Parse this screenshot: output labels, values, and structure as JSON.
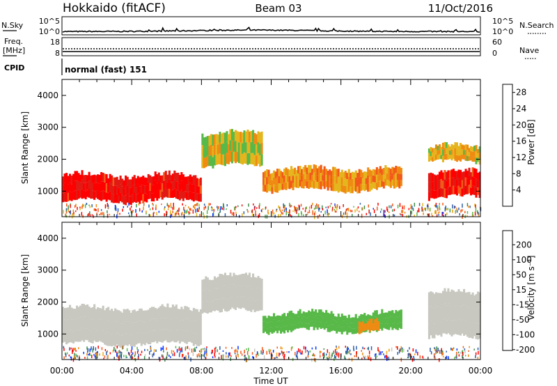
{
  "header": {
    "station": "Hokkaido (fitACF)",
    "beam": "Beam 03",
    "date": "11/Oct/2016"
  },
  "noise_panel": {
    "left_label": "N.Sky",
    "left_ticks": [
      "10^5",
      "10^0"
    ],
    "right_label": "N.Search",
    "right_ticks": [
      "10^5",
      "10^0"
    ]
  },
  "freq_panel": {
    "left_label_1": "Freq.",
    "left_label_2": "[MHz]",
    "left_ticks": [
      "18",
      "8"
    ],
    "right_label": "Nave",
    "right_ticks": [
      "60",
      "0"
    ]
  },
  "cpid_panel": {
    "label": "CPID",
    "mode": "normal (fast) 151"
  },
  "colors": {
    "power": [
      "#0033ff",
      "#2d5fa8",
      "#3f8d4e",
      "#58b848",
      "#e5b51e",
      "#ef8a12",
      "#f25a1a",
      "#e11a14",
      "#ff0000"
    ],
    "velocity": [
      "#ff0000",
      "#f25a1a",
      "#ef8a12",
      "#f2a81a",
      "#c8c8c0",
      "#58b848",
      "#3f8d4e",
      "#2d5fa8",
      "#0033ff"
    ]
  },
  "chart_data": [
    {
      "type": "heatmap",
      "name": "power",
      "ylabel": "Slant Range [km]",
      "xlabel": "",
      "xlim": [
        "00:00",
        "24:00"
      ],
      "ylim": [
        200,
        4500
      ],
      "y_ticks": [
        "1000",
        "2000",
        "3000",
        "4000"
      ],
      "colorbar": {
        "label": "Power [dB]",
        "ticks": [
          "4",
          "8",
          "12",
          "16",
          "20",
          "24",
          "28"
        ],
        "range": [
          0,
          30
        ]
      },
      "echo_regions": [
        {
          "t_start": 0.0,
          "t_end": 8.0,
          "r_low": 700,
          "r_high": 1500,
          "power_db": 27
        },
        {
          "t_start": 8.0,
          "t_end": 11.5,
          "r_low": 1800,
          "r_high": 2800,
          "power_db": 14
        },
        {
          "t_start": 11.5,
          "t_end": 19.5,
          "r_low": 1050,
          "r_high": 1700,
          "power_db": 18
        },
        {
          "t_start": 21.0,
          "t_end": 24.0,
          "r_low": 800,
          "r_high": 1600,
          "power_db": 26
        },
        {
          "t_start": 21.0,
          "t_end": 24.0,
          "r_low": 1900,
          "r_high": 2400,
          "power_db": 16
        }
      ]
    },
    {
      "type": "heatmap",
      "name": "velocity",
      "ylabel": "Slant Range [km]",
      "xlabel": "Time UT",
      "xlim": [
        "00:00",
        "24:00"
      ],
      "x_ticks": [
        "00:00",
        "04:00",
        "08:00",
        "12:00",
        "16:00",
        "20:00",
        "00:00"
      ],
      "ylim": [
        200,
        4500
      ],
      "y_ticks": [
        "1000",
        "2000",
        "3000",
        "4000"
      ],
      "colorbar": {
        "label": "Velocity [m s⁻¹]",
        "ticks": [
          "200",
          "100",
          "50",
          "15",
          "-15",
          "-50",
          "-100",
          "-200"
        ]
      },
      "echo_regions": [
        {
          "t_start": 0.0,
          "t_end": 8.0,
          "r_low": 700,
          "r_high": 1800,
          "velocity": 0
        },
        {
          "t_start": 8.0,
          "t_end": 11.5,
          "r_low": 1700,
          "r_high": 2800,
          "velocity": 0
        },
        {
          "t_start": 11.5,
          "t_end": 19.5,
          "r_low": 1100,
          "r_high": 1650,
          "velocity": 30
        },
        {
          "t_start": 17.0,
          "t_end": 18.2,
          "r_low": 1050,
          "r_high": 1350,
          "velocity": -40
        },
        {
          "t_start": 21.0,
          "t_end": 24.0,
          "r_low": 900,
          "r_high": 2300,
          "velocity": 0
        }
      ]
    }
  ]
}
